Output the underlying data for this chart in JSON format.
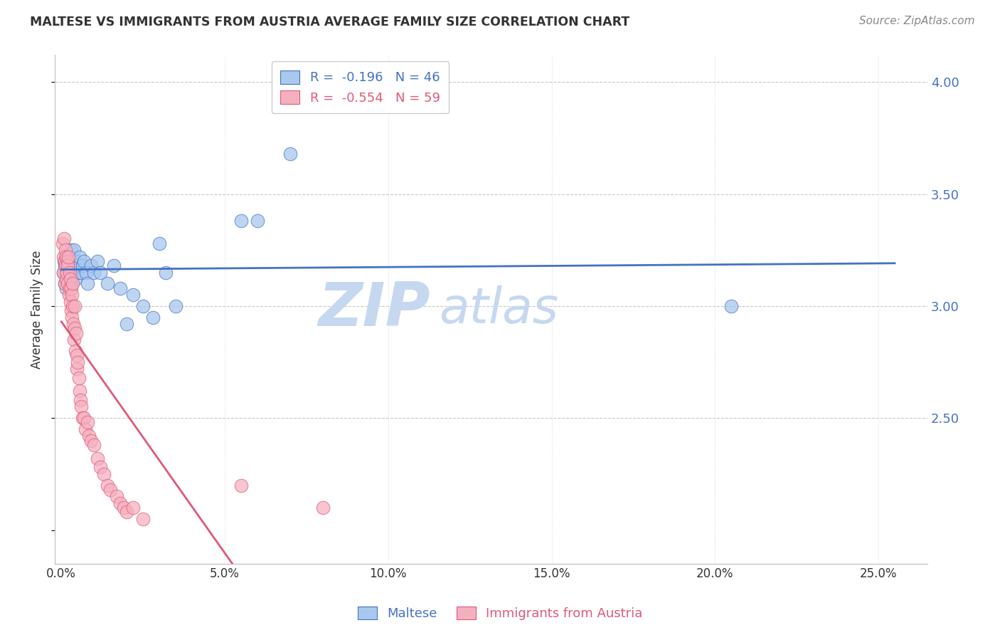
{
  "title": "MALTESE VS IMMIGRANTS FROM AUSTRIA AVERAGE FAMILY SIZE CORRELATION CHART",
  "source": "Source: ZipAtlas.com",
  "ylabel": "Average Family Size",
  "xlabel_ticks": [
    "0.0%",
    "5.0%",
    "10.0%",
    "15.0%",
    "20.0%",
    "25.0%"
  ],
  "xlabel_vals": [
    0.0,
    5.0,
    10.0,
    15.0,
    20.0,
    25.0
  ],
  "ylim": [
    1.85,
    4.12
  ],
  "xlim": [
    -0.2,
    26.5
  ],
  "yticks_right": [
    2.5,
    3.0,
    3.5,
    4.0
  ],
  "ytick_labels_right": [
    "2.50",
    "3.00",
    "3.50",
    "4.00"
  ],
  "blue_color": "#A8C8EE",
  "pink_color": "#F5B0C0",
  "blue_line_color": "#4472C4",
  "pink_line_color": "#E05878",
  "title_color": "#333333",
  "right_axis_color": "#4472C4",
  "grid_color": "#C8C8C8",
  "legend_label_blue": "Maltese",
  "legend_label_pink": "Immigrants from Austria",
  "legend_R_blue": "R =  -0.196   N = 46",
  "legend_R_pink": "R =  -0.554   N = 59",
  "blue_scatter_x": [
    0.05,
    0.08,
    0.1,
    0.1,
    0.12,
    0.15,
    0.15,
    0.18,
    0.2,
    0.22,
    0.25,
    0.28,
    0.3,
    0.3,
    0.32,
    0.35,
    0.38,
    0.4,
    0.42,
    0.45,
    0.48,
    0.5,
    0.55,
    0.6,
    0.65,
    0.7,
    0.75,
    0.8,
    0.9,
    1.0,
    1.1,
    1.2,
    1.4,
    1.6,
    1.8,
    2.0,
    2.2,
    2.5,
    2.8,
    3.0,
    3.2,
    3.5,
    5.5,
    6.0,
    7.0,
    20.5
  ],
  "blue_scatter_y": [
    3.15,
    3.2,
    3.1,
    3.18,
    3.22,
    3.15,
    3.08,
    3.2,
    3.18,
    3.12,
    3.22,
    3.16,
    3.1,
    3.25,
    3.18,
    3.2,
    3.25,
    3.15,
    3.12,
    3.2,
    3.15,
    3.18,
    3.22,
    3.15,
    3.18,
    3.2,
    3.15,
    3.1,
    3.18,
    3.15,
    3.2,
    3.15,
    3.1,
    3.18,
    3.08,
    2.92,
    3.05,
    3.0,
    2.95,
    3.28,
    3.15,
    3.0,
    3.38,
    3.38,
    3.68,
    3.0
  ],
  "pink_scatter_x": [
    0.03,
    0.05,
    0.07,
    0.08,
    0.1,
    0.1,
    0.12,
    0.13,
    0.15,
    0.15,
    0.17,
    0.18,
    0.2,
    0.2,
    0.22,
    0.23,
    0.25,
    0.25,
    0.27,
    0.28,
    0.3,
    0.3,
    0.32,
    0.33,
    0.35,
    0.35,
    0.37,
    0.38,
    0.4,
    0.4,
    0.43,
    0.45,
    0.47,
    0.48,
    0.5,
    0.53,
    0.55,
    0.58,
    0.6,
    0.65,
    0.7,
    0.73,
    0.8,
    0.85,
    0.9,
    1.0,
    1.1,
    1.2,
    1.3,
    1.4,
    1.5,
    1.7,
    1.8,
    1.9,
    2.0,
    2.2,
    2.5,
    5.5,
    8.0
  ],
  "pink_scatter_y": [
    3.28,
    3.22,
    3.15,
    3.3,
    3.2,
    3.1,
    3.25,
    3.18,
    3.22,
    3.12,
    3.15,
    3.2,
    3.1,
    3.18,
    3.22,
    3.05,
    3.15,
    3.08,
    3.02,
    3.12,
    3.08,
    2.98,
    3.05,
    2.95,
    3.0,
    3.1,
    2.92,
    2.85,
    2.9,
    3.0,
    2.8,
    2.88,
    2.78,
    2.72,
    2.75,
    2.68,
    2.62,
    2.58,
    2.55,
    2.5,
    2.5,
    2.45,
    2.48,
    2.42,
    2.4,
    2.38,
    2.32,
    2.28,
    2.25,
    2.2,
    2.18,
    2.15,
    2.12,
    2.1,
    2.08,
    2.1,
    2.05,
    2.2,
    2.1
  ]
}
